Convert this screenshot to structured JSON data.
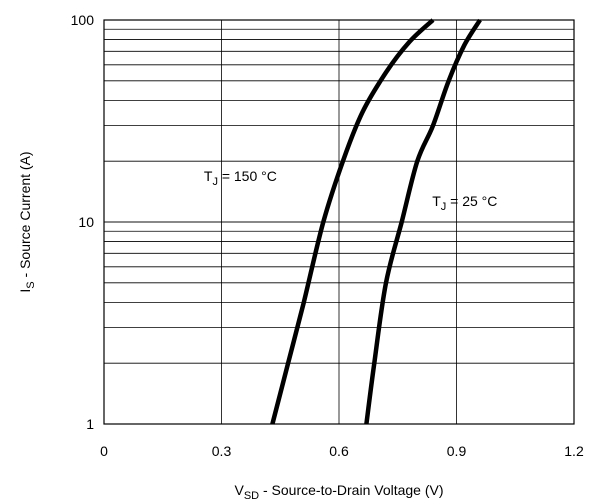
{
  "chart_data": {
    "type": "line",
    "xlabel": {
      "main": "V",
      "sub": "SD",
      "rest": " - Source-to-Drain Voltage (V)"
    },
    "ylabel": {
      "main": "I",
      "sub": "S",
      "rest": " -   Source Current (A)"
    },
    "xlim": [
      0,
      1.2
    ],
    "ylim": [
      1,
      100
    ],
    "yscale": "log",
    "grid": true,
    "x_ticks": [
      {
        "value": 0,
        "label": "0"
      },
      {
        "value": 0.3,
        "label": "0.3"
      },
      {
        "value": 0.6,
        "label": "0.6"
      },
      {
        "value": 0.9,
        "label": "0.9"
      },
      {
        "value": 1.2,
        "label": "1.2"
      }
    ],
    "y_ticks": [
      {
        "value": 1,
        "label": "1"
      },
      {
        "value": 10,
        "label": "10"
      },
      {
        "value": 100,
        "label": "100"
      }
    ],
    "series": [
      {
        "name": "TJ = 150 °C",
        "label": {
          "main": "T",
          "sub": "J",
          "rest": " = 150 °C",
          "at": [
            0.255,
            16
          ]
        },
        "points": [
          [
            0.43,
            1
          ],
          [
            0.47,
            2
          ],
          [
            0.51,
            4
          ],
          [
            0.56,
            10
          ],
          [
            0.61,
            20
          ],
          [
            0.66,
            35
          ],
          [
            0.72,
            55
          ],
          [
            0.78,
            78
          ],
          [
            0.84,
            100
          ]
        ]
      },
      {
        "name": "TJ = 25 °C",
        "label": {
          "main": "T",
          "sub": "J",
          "rest": " = 25 °C",
          "at": [
            0.838,
            12
          ]
        },
        "points": [
          [
            0.67,
            1
          ],
          [
            0.69,
            2
          ],
          [
            0.72,
            5
          ],
          [
            0.76,
            10
          ],
          [
            0.8,
            20
          ],
          [
            0.84,
            30
          ],
          [
            0.88,
            50
          ],
          [
            0.92,
            75
          ],
          [
            0.96,
            100
          ]
        ]
      }
    ]
  }
}
